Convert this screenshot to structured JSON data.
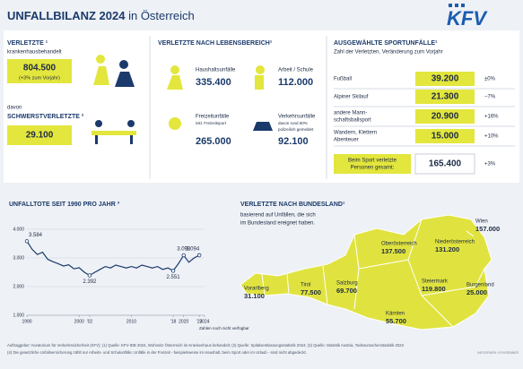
{
  "header": {
    "title": "UNFALLBILANZ 2024",
    "title_suffix": "in Österreich",
    "logo": "KFV"
  },
  "injured": {
    "label": "VERLETZTE ¹",
    "sublabel": "krankenhausbehandelt",
    "value": "804.500",
    "change": "(+3% zum Vorjahr)",
    "severe_prefix": "davon",
    "severe_label": "SCHWERSTVERLETZTE ²",
    "severe_value": "29.100"
  },
  "life_areas": {
    "title": "VERLETZTE NACH LEBENSBEREICH¹",
    "items": [
      {
        "label": "Haushaltsunfälle",
        "value": "335.400"
      },
      {
        "label": "Arbeit / Schule",
        "value": "112.000"
      },
      {
        "label": "Freizeitunfälle",
        "note": "inkl. Freizeitsport",
        "value": "265.000"
      },
      {
        "label": "Verkehrsunfälle",
        "note": "davon rund 60%",
        "note2": "polizeilich gemeldet",
        "value": "92.100"
      }
    ]
  },
  "sports": {
    "title": "AUSGEWÄHLTE SPORTUNFÄLLE¹",
    "subtitle": "Zahl der Verletzten, Veränderung zum Vorjahr",
    "rows": [
      {
        "label": "Fußball",
        "value": "39.200",
        "change": "±0%"
      },
      {
        "label": "Alpiner Skilauf",
        "value": "21.300",
        "change": "−7%"
      },
      {
        "label": "andere Mann-",
        "label2": "schaftsballsport",
        "value": "20.900",
        "change": "+16%"
      },
      {
        "label": "Wandern, Klettern",
        "label2": "Abenteuer",
        "value": "15.000",
        "change": "+10%"
      }
    ],
    "total_label": "Beim Sport verletzte",
    "total_label2": "Personen gesamt:",
    "total_value": "165.400",
    "total_change": "+3%"
  },
  "chart_data": {
    "type": "line",
    "title": "UNFALLTOTE SEIT 1990 PRO JAHR ³",
    "x": [
      1990,
      1991,
      1992,
      1993,
      1994,
      1995,
      1996,
      1997,
      1998,
      1999,
      2000,
      2001,
      2002,
      2003,
      2004,
      2005,
      2006,
      2007,
      2008,
      2009,
      2010,
      2011,
      2012,
      2013,
      2014,
      2015,
      2016,
      2017,
      2018,
      2019,
      2020,
      2021,
      2022,
      2023
    ],
    "series": [
      {
        "name": "Unfalltote",
        "color": "#1b3a6b",
        "values": [
          3584,
          3300,
          3120,
          3200,
          2950,
          2870,
          2800,
          2720,
          2760,
          2620,
          2660,
          2500,
          2392,
          2500,
          2600,
          2700,
          2650,
          2750,
          2700,
          2650,
          2700,
          2650,
          2750,
          2700,
          2650,
          2700,
          2600,
          2650,
          2551,
          2800,
          3093,
          2850,
          3000,
          3094
        ],
        "value_labels": [
          "3.584",
          null,
          null,
          null,
          null,
          null,
          null,
          null,
          null,
          null,
          null,
          null,
          "2.392",
          null,
          null,
          null,
          null,
          null,
          null,
          null,
          null,
          null,
          null,
          null,
          null,
          null,
          null,
          null,
          "2.551",
          null,
          "3.093",
          null,
          null,
          "3.094"
        ]
      }
    ],
    "xlim": [
      1990,
      2024
    ],
    "xticks": [
      1990,
      2000,
      {
        "value": 2002,
        "label": "'02"
      },
      2010,
      {
        "value": 2018,
        "label": "'18"
      },
      2020,
      {
        "value": 2023,
        "label": "'23"
      },
      2024
    ],
    "ylim": [
      1000,
      4000
    ],
    "yticks": [
      {
        "value": 1000,
        "label": "1.000"
      },
      {
        "value": 2000,
        "label": "2.000"
      },
      {
        "value": 3000,
        "label": "3.000"
      },
      {
        "value": 4000,
        "label": "4.000"
      }
    ],
    "grid": true,
    "note": "Zahlen noch nicht verfügbar"
  },
  "states": {
    "title": "VERLETZTE NACH BUNDESLAND¹",
    "subtitle": "basierend auf Unfällen, die sich",
    "subtitle2": "im Bundesland ereignet haben.",
    "items": [
      {
        "name": "Wien",
        "value": "157.000"
      },
      {
        "name": "Niederösterreich",
        "value": "131.200"
      },
      {
        "name": "Oberösterreich",
        "value": "137.500"
      },
      {
        "name": "Burgenland",
        "value": "25.000"
      },
      {
        "name": "Steiermark",
        "value": "119.800"
      },
      {
        "name": "Salzburg",
        "value": "69.700"
      },
      {
        "name": "Tirol",
        "value": "77.500"
      },
      {
        "name": "Vorarlberg",
        "value": "31.100"
      },
      {
        "name": "Kärnten",
        "value": "55.700"
      }
    ]
  },
  "footer": {
    "line1": "Auftraggeber: Kuratorium für Verkehrssicherheit (KFV); (1) Quelle: KFV-IDB 2024, Wohnsitz Österreich im Krankenhaus behandelt; (2) Quelle: Spitalsentlassungsstatistik 2024; (3) Quelle: Statistik Austria, Todesursachenstatistik 2023",
    "line2": "(4) Die gesetzliche Unfallversicherung zählt nur Arbeits- und Schulunfälle; Unfälle in der Freizeit - beispielsweise im Haushalt, beim Sport oder im Urlaub - sind nicht abgedeckt.",
    "credit": "INFOGRAFIK: KFV/RENNER"
  }
}
